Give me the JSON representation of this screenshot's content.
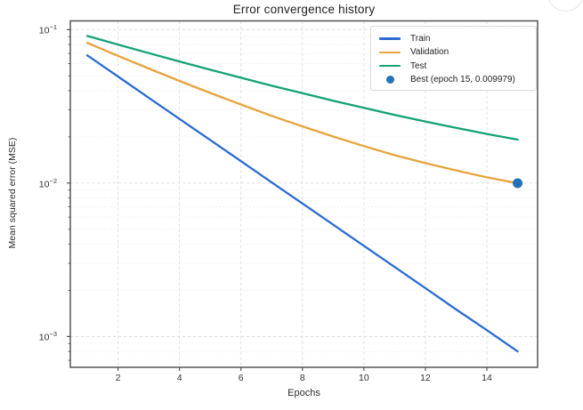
{
  "chart_data": {
    "type": "line",
    "title": "Error convergence history",
    "xlabel": "Epochs",
    "ylabel": "Mean squared error (MSE)",
    "yscale": "log",
    "grid": true,
    "legend_position": "upper right",
    "xlim": [
      0.45,
      15.65
    ],
    "ylim": [
      0.00063,
      0.114
    ],
    "x_ticks": [
      2,
      4,
      6,
      8,
      10,
      12,
      14
    ],
    "y_tick_exponents": [
      -1,
      -2,
      -3
    ],
    "x": [
      1,
      2,
      3,
      4,
      5,
      6,
      7,
      8,
      9,
      10,
      11,
      12,
      13,
      14,
      15
    ],
    "series": [
      {
        "name": "Train",
        "color": "#2b6bd3",
        "values": [
          0.068,
          0.0495,
          0.036,
          0.0262,
          0.0191,
          0.0139,
          0.0101,
          0.00736,
          0.00536,
          0.0039,
          0.00284,
          0.00207,
          0.0015,
          0.0011,
          0.0008
        ]
      },
      {
        "name": "Validation",
        "color": "#e8a33c",
        "values": [
          0.082,
          0.0675,
          0.0558,
          0.0463,
          0.0387,
          0.0325,
          0.0274,
          0.0234,
          0.0201,
          0.0174,
          0.0152,
          0.0135,
          0.0121,
          0.0109,
          0.009979
        ]
      },
      {
        "name": "Test",
        "color": "#14a276",
        "values": [
          0.091,
          0.0799,
          0.0703,
          0.062,
          0.0548,
          0.0486,
          0.0431,
          0.0385,
          0.0344,
          0.0309,
          0.0278,
          0.0252,
          0.0229,
          0.0209,
          0.0192
        ]
      }
    ],
    "best_point": {
      "label": "Best (epoch 15, 0.009979)",
      "epoch": 15,
      "value": 0.009979,
      "color": "#2471b8"
    },
    "colors": {
      "grid_major": "#dcdcdc",
      "grid_minor": "#eaeaea",
      "spine": "#494949",
      "text": "#2d2d2d"
    }
  }
}
